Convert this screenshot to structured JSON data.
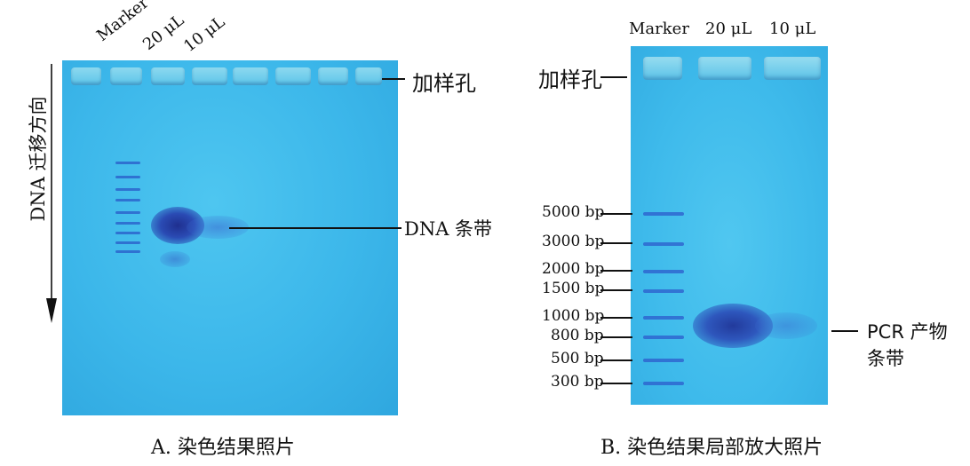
{
  "panel_a": {
    "lane_labels": [
      "Marker",
      "20 μL",
      "10 μL"
    ],
    "well_label": "加样孔",
    "band_label": "DNA 条带",
    "direction_label": "DNA 迁移方向",
    "caption": "A.  染色结果照片"
  },
  "panel_b": {
    "lane_labels": [
      "Marker",
      "20 μL",
      "10 μL"
    ],
    "well_label": "加样孔",
    "ladder_labels": [
      "5000 bp",
      "3000 bp",
      "2000 bp",
      "1500 bp",
      "1000 bp",
      "800 bp",
      "500 bp",
      "300 bp"
    ],
    "product_label_line1": "PCR 产物",
    "product_label_line2": "条带",
    "caption": "B.  染色结果局部放大照片"
  },
  "colors": {
    "gel": "#3cb7ea",
    "band": "#1f2f8f",
    "ladder": "#2f5fcf"
  }
}
